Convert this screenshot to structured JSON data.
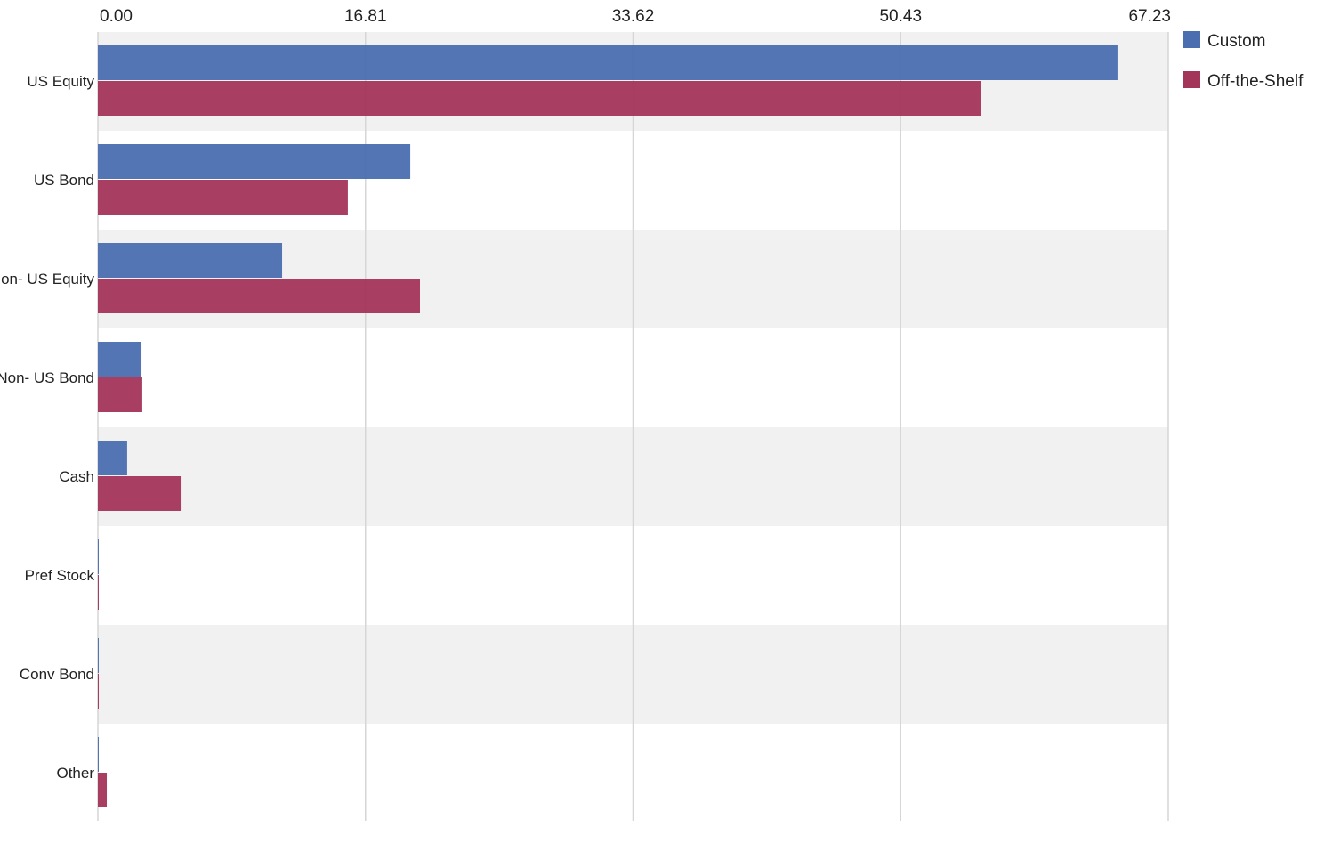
{
  "chart_data": {
    "type": "bar",
    "orientation": "horizontal",
    "categories": [
      "US Equity",
      "US Bond",
      "Non- US Equity",
      "Non- US Bond",
      "Cash",
      "Pref Stock",
      "Conv Bond",
      "Other"
    ],
    "series": [
      {
        "name": "Custom",
        "color": "#4a6eb0",
        "values": [
          64.04,
          19.62,
          11.57,
          2.74,
          1.84,
          0.0,
          0.0,
          0.05
        ]
      },
      {
        "name": "Off-the-Shelf",
        "color": "#a3345a",
        "values": [
          55.49,
          15.7,
          20.23,
          2.79,
          5.2,
          0.0,
          0.0,
          0.56
        ]
      }
    ],
    "xticks": [
      "0.00",
      "16.81",
      "33.62",
      "50.43",
      "67.23"
    ],
    "xlim": [
      0,
      67.23
    ],
    "grid": true,
    "legend": "top-right",
    "title": "",
    "xlabel": "",
    "ylabel": ""
  }
}
